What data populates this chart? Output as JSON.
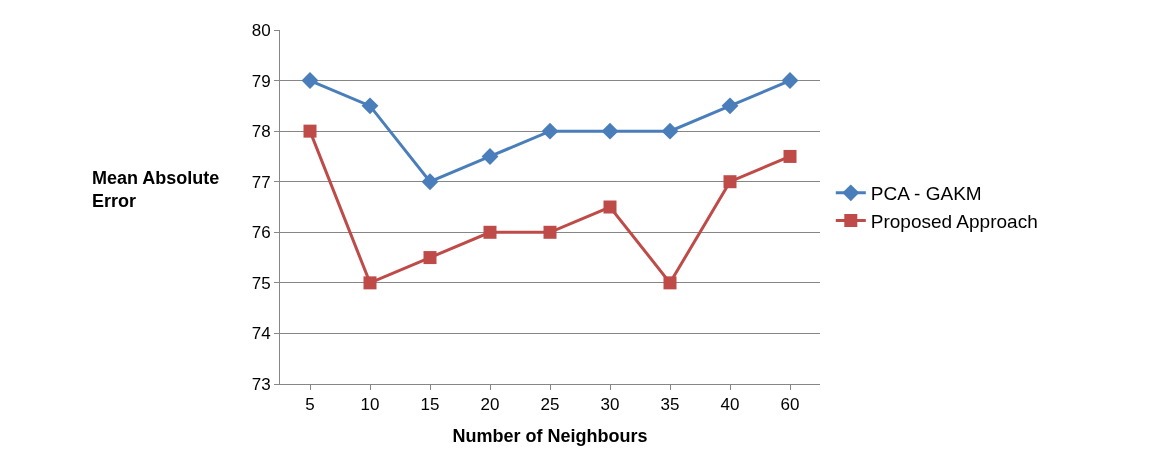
{
  "chart_data": {
    "type": "line",
    "xlabel": "Number of Neighbours",
    "ylabel": "Mean Absolute\nError",
    "categories": [
      "5",
      "10",
      "15",
      "20",
      "25",
      "30",
      "35",
      "40",
      "60"
    ],
    "series": [
      {
        "name": "PCA - GAKM",
        "color": "#4a7ebb",
        "marker": "diamond",
        "values": [
          79,
          78.5,
          77,
          77.5,
          78,
          78,
          78,
          78.5,
          79
        ]
      },
      {
        "name": "Proposed Approach",
        "color": "#be4b48",
        "marker": "square",
        "values": [
          78,
          75,
          75.5,
          76,
          76,
          76.5,
          75,
          77,
          77.5
        ]
      }
    ],
    "ylim": [
      73,
      80
    ],
    "yticks": [
      73,
      74,
      75,
      76,
      77,
      78,
      79,
      80
    ],
    "grid": "y",
    "legend": "right",
    "line_style": "solid"
  }
}
